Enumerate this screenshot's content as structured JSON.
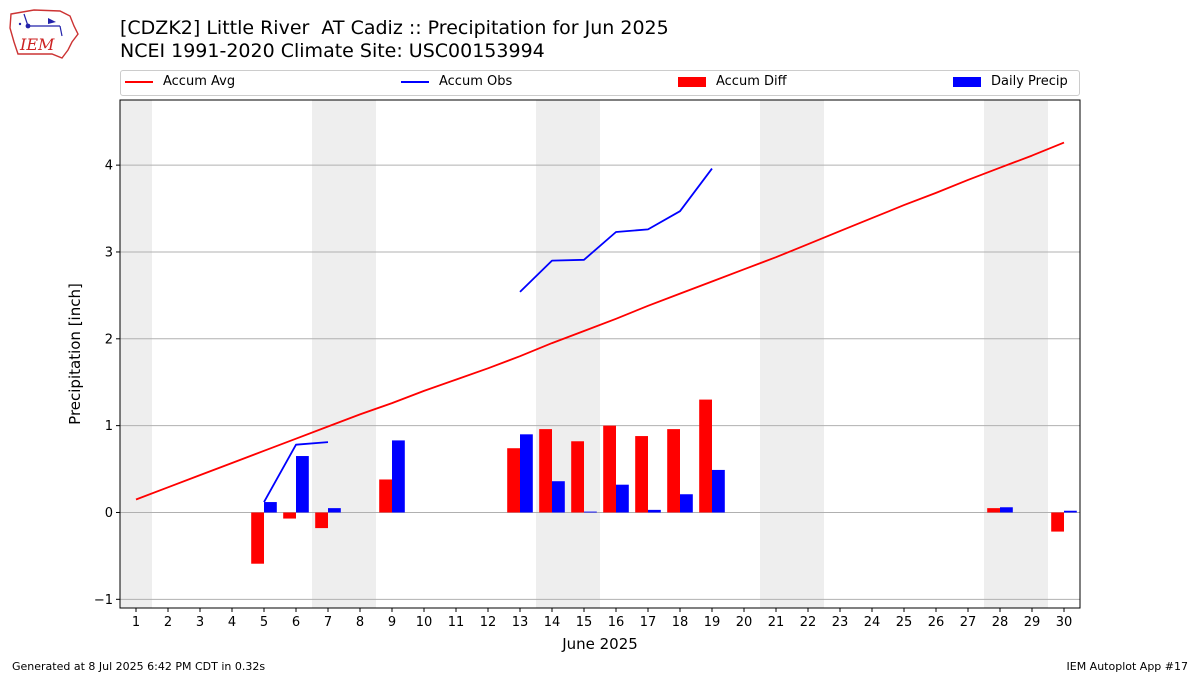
{
  "header": {
    "logo_text": "IEM",
    "title_line1": "[CDZK2] Little River  AT Cadiz :: Precipitation for Jun 2025",
    "title_line2": "NCEI 1991-2020 Climate Site: USC00153994"
  },
  "legend": {
    "placement": "top, horizontal row",
    "items": [
      {
        "label": "Accum Avg",
        "kind": "line",
        "color": "#ff0000"
      },
      {
        "label": "Accum Obs",
        "kind": "line",
        "color": "#0000ff"
      },
      {
        "label": "Accum Diff",
        "kind": "bar",
        "color": "#ff0000"
      },
      {
        "label": "Daily Precip",
        "kind": "bar",
        "color": "#0000ff"
      }
    ]
  },
  "chart_data": {
    "type": "bar",
    "xlabel": "June 2025",
    "ylabel": "Precipitation [inch]",
    "xlim": [
      0.5,
      30.5
    ],
    "ylim": [
      -1.1,
      4.75
    ],
    "x_ticks": [
      1,
      2,
      3,
      4,
      5,
      6,
      7,
      8,
      9,
      10,
      11,
      12,
      13,
      14,
      15,
      16,
      17,
      18,
      19,
      20,
      21,
      22,
      23,
      24,
      25,
      26,
      27,
      28,
      29,
      30
    ],
    "y_ticks": [
      -1,
      0,
      1,
      2,
      3,
      4
    ],
    "grid": "horizontal",
    "weekend_shading": [
      [
        0.5,
        1.5
      ],
      [
        6.5,
        8.5
      ],
      [
        13.5,
        15.5
      ],
      [
        20.5,
        22.5
      ],
      [
        27.5,
        29.5
      ]
    ],
    "weekend_color": "#eeeeee",
    "series": [
      {
        "name": "Accum Avg",
        "kind": "line",
        "color": "#ff0000",
        "x": [
          1,
          2,
          3,
          4,
          5,
          6,
          7,
          8,
          9,
          10,
          11,
          12,
          13,
          14,
          15,
          16,
          17,
          18,
          19,
          20,
          21,
          22,
          23,
          24,
          25,
          26,
          27,
          28,
          29,
          30
        ],
        "values": [
          0.15,
          0.29,
          0.43,
          0.57,
          0.71,
          0.85,
          0.99,
          1.13,
          1.26,
          1.4,
          1.53,
          1.66,
          1.8,
          1.95,
          2.09,
          2.23,
          2.38,
          2.52,
          2.66,
          2.8,
          2.94,
          3.09,
          3.24,
          3.39,
          3.54,
          3.68,
          3.83,
          3.97,
          4.11,
          4.26
        ]
      },
      {
        "name": "Accum Obs",
        "kind": "line",
        "color": "#0000ff",
        "segments": [
          {
            "x": [
              5,
              6,
              7
            ],
            "values": [
              0.12,
              0.78,
              0.81
            ]
          },
          {
            "x": [
              13,
              14,
              15,
              16,
              17,
              18,
              19
            ],
            "values": [
              2.54,
              2.9,
              2.91,
              3.23,
              3.26,
              3.47,
              3.96
            ]
          }
        ]
      },
      {
        "name": "Accum Diff",
        "kind": "bar",
        "color": "#ff0000",
        "x": [
          5,
          6,
          7,
          9,
          13,
          14,
          15,
          16,
          17,
          18,
          19,
          28,
          30
        ],
        "values": [
          -0.59,
          -0.07,
          -0.18,
          0.38,
          0.74,
          0.96,
          0.82,
          1.0,
          0.88,
          0.96,
          1.3,
          0.05,
          -0.22
        ]
      },
      {
        "name": "Daily Precip",
        "kind": "bar",
        "color": "#0000ff",
        "x": [
          5,
          6,
          7,
          9,
          13,
          14,
          15,
          16,
          17,
          18,
          19,
          28,
          30
        ],
        "values": [
          0.12,
          0.65,
          0.05,
          0.83,
          0.9,
          0.36,
          0.01,
          0.32,
          0.03,
          0.21,
          0.49,
          0.06,
          0.02
        ]
      }
    ]
  },
  "footer": {
    "left": "Generated at 8 Jul 2025 6:42 PM CDT in 0.32s",
    "right": "IEM Autoplot App #17"
  }
}
